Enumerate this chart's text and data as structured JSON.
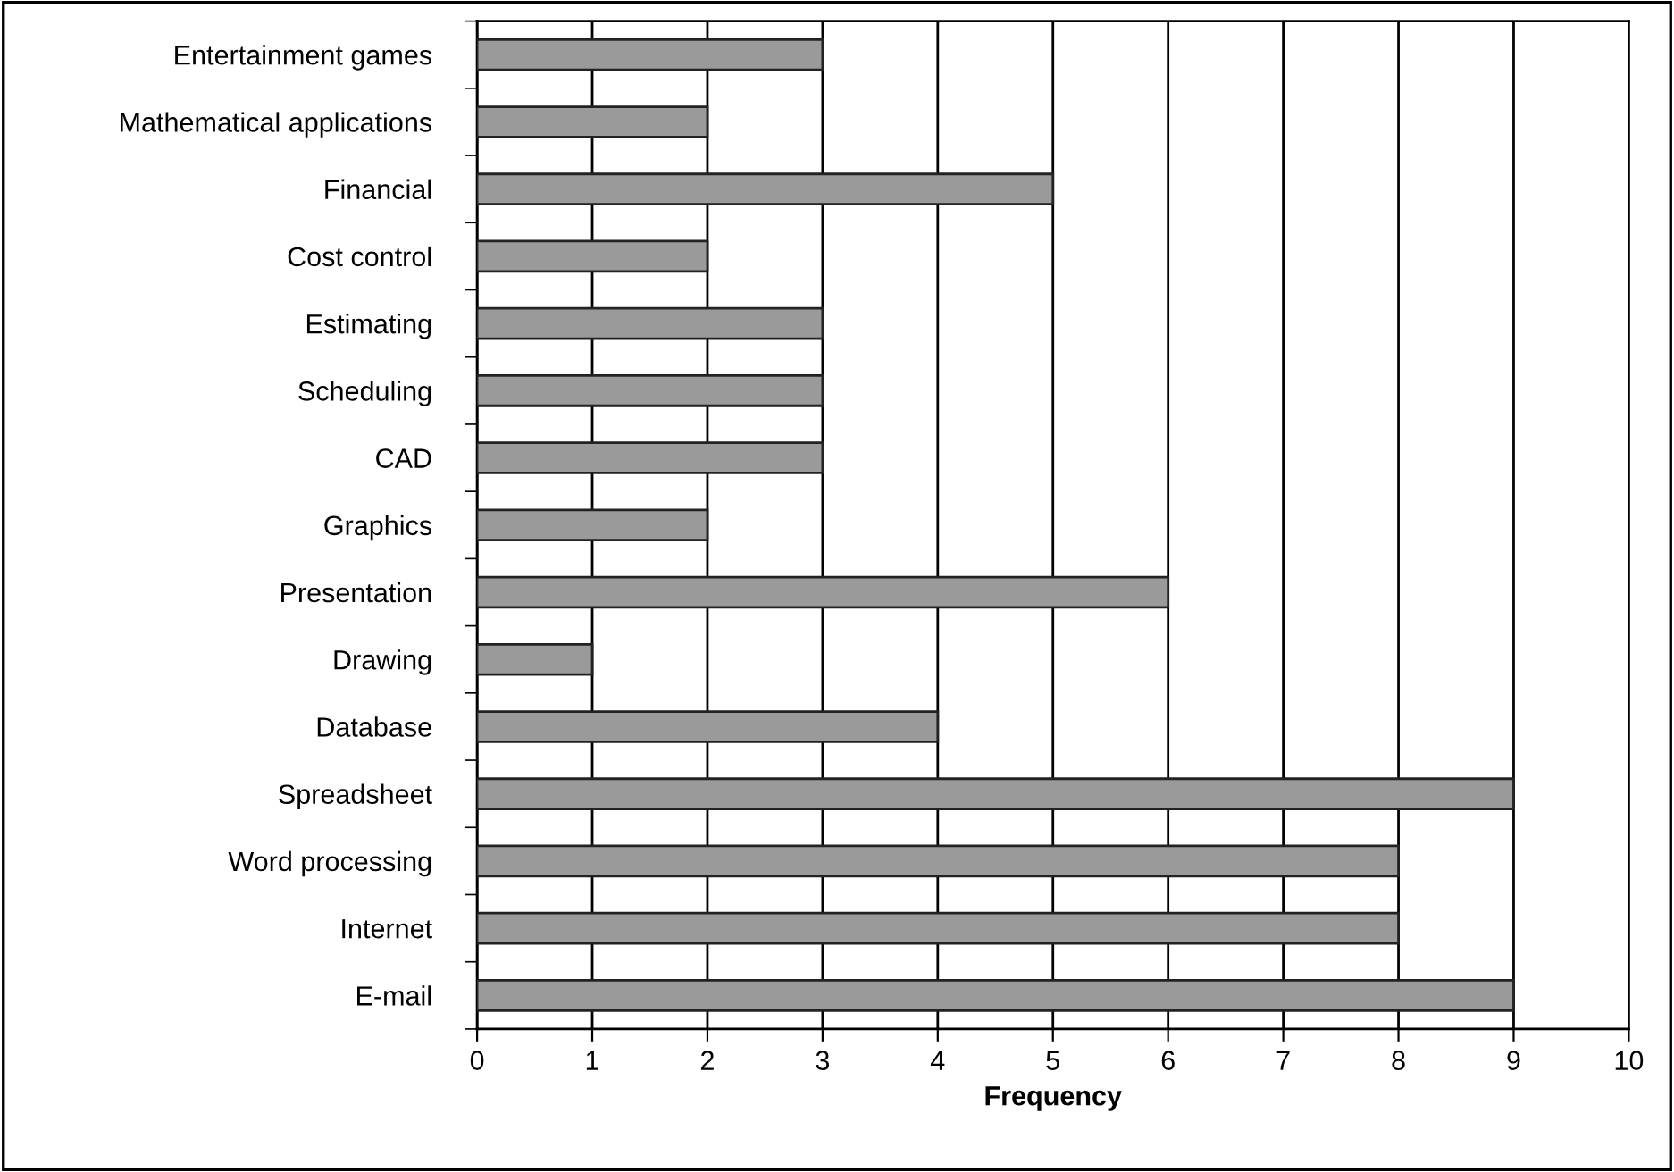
{
  "chart_data": {
    "type": "bar",
    "orientation": "horizontal",
    "xlabel": "Frequency",
    "categories": [
      "Entertainment games",
      "Mathematical applications",
      "Financial",
      "Cost control",
      "Estimating",
      "Scheduling",
      "CAD",
      "Graphics",
      "Presentation",
      "Drawing",
      "Database",
      "Spreadsheet",
      "Word processing",
      "Internet",
      "E-mail"
    ],
    "values": [
      3,
      2,
      5,
      2,
      3,
      3,
      3,
      2,
      6,
      1,
      4,
      9,
      8,
      8,
      9
    ],
    "color": "#9a9a9a",
    "xlim": [
      0,
      10
    ],
    "xticks": [
      0,
      1,
      2,
      3,
      4,
      5,
      6,
      7,
      8,
      9,
      10
    ],
    "grid": "x",
    "legend": false
  }
}
